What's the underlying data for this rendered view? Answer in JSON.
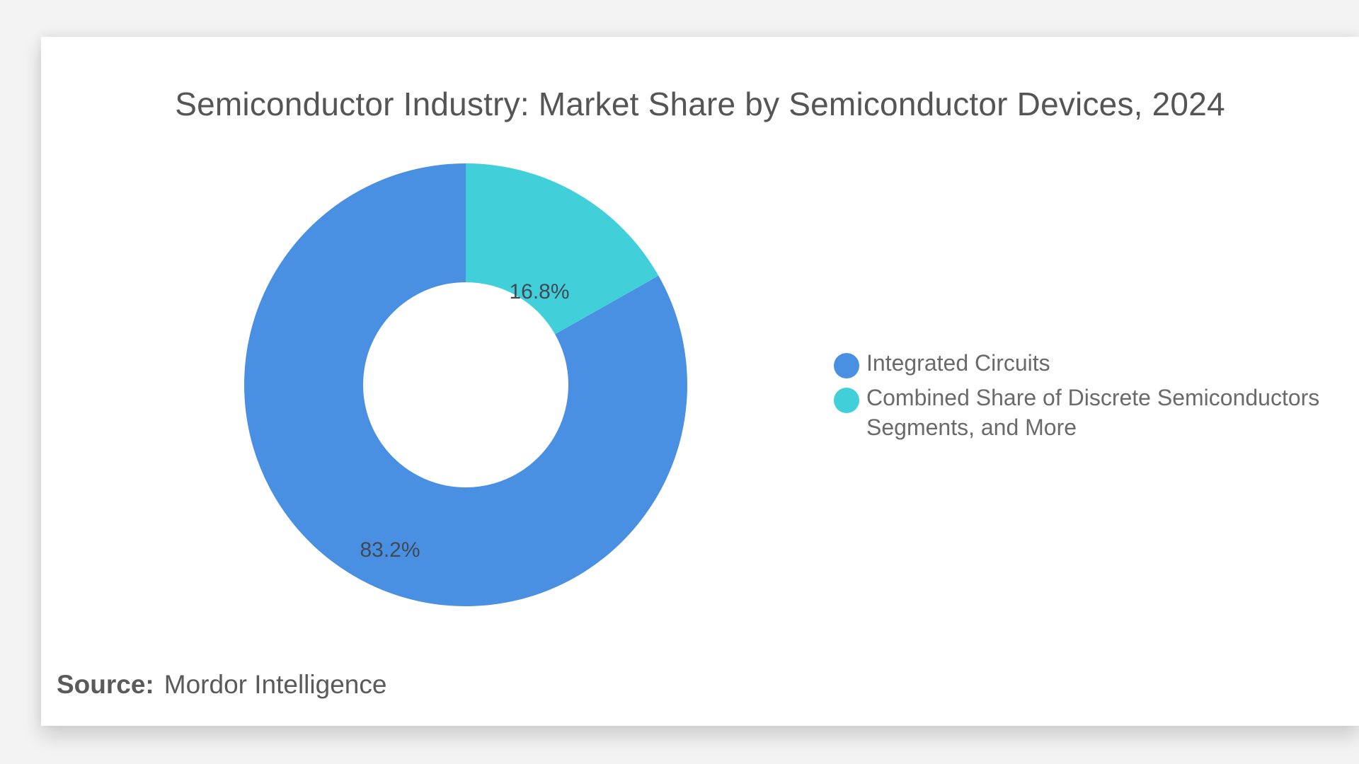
{
  "colors": {
    "integrated_circuits": "#4a90e2",
    "discrete": "#41d0d9",
    "label_text": "#3f4a55"
  },
  "chart_data": {
    "type": "pie",
    "variant": "donut",
    "title": "Semiconductor Industry: Market Share by Semiconductor Devices, 2024",
    "categories": [
      "Integrated Circuits",
      "Combined Share of Discrete Semiconductors Segments, and More"
    ],
    "values": [
      83.2,
      16.8
    ],
    "labels": [
      "83.2%",
      "16.8%"
    ],
    "unit": "%",
    "legend_position": "right"
  },
  "legend": {
    "items": [
      {
        "label": "Integrated Circuits"
      },
      {
        "label": "Combined Share of Discrete Semiconductors Segments, and More"
      }
    ]
  },
  "source": {
    "key": "Source:",
    "value": "Mordor Intelligence"
  }
}
